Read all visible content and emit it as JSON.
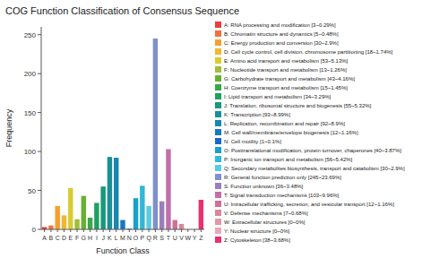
{
  "chart_data": {
    "type": "bar",
    "title": "COG Function Classification of Consensus Sequence",
    "xlabel": "Function Class",
    "ylabel": "Frequency",
    "categories": [
      "A",
      "B",
      "C",
      "D",
      "E",
      "F",
      "G",
      "H",
      "I",
      "J",
      "K",
      "L",
      "M",
      "N",
      "O",
      "P",
      "Q",
      "R",
      "S",
      "T",
      "U",
      "V",
      "W",
      "Y",
      "Z"
    ],
    "values": [
      3,
      5,
      30,
      18,
      53,
      13,
      43,
      15,
      34,
      55,
      93,
      92,
      12,
      1,
      40,
      56,
      30,
      245,
      36,
      103,
      12,
      7,
      0,
      0,
      38
    ],
    "colors": [
      "#e84040",
      "#f07040",
      "#f4a030",
      "#f0b830",
      "#d8cc30",
      "#a0be38",
      "#68b034",
      "#38a84a",
      "#20a060",
      "#18987c",
      "#189098",
      "#1888b0",
      "#1878c0",
      "#1868cc",
      "#18a0cc",
      "#30b8d8",
      "#58cce0",
      "#8090c8",
      "#9880b8",
      "#c070a8",
      "#d07098",
      "#d88898",
      "#e098a8",
      "#e8a8b8",
      "#e83070"
    ],
    "legend_labels": [
      "A: RNA processing and modification [3~0.29%]",
      "B: Chromatin structure and dynamics [5~0.48%]",
      "C: Energy production and conversion [30~2.9%]",
      "D: Cell cycle control, cell division, chromosome partitioning [18~1.74%]",
      "E: Amino acid transport and metabolism [53~5.13%]",
      "F: Nucleotide transport and metabolism [13~1.26%]",
      "G: Carbohydrate transport and metabolism [43~4.16%]",
      "H: Coenzyme transport and metabolism [15~1.45%]",
      "I: Lipid transport and metabolism [34~3.29%]",
      "J: Translation, ribosomal structure and biogenesis [55~5.32%]",
      "K: Transcription [93~8.99%]",
      "L: Replication, recombination and repair [92~8.9%]",
      "M: Cell wall/membrane/envelope biogenesis [12~1.16%]",
      "N: Cell motility [1~0.1%]",
      "O: Posttranslational modification, protein turnover, chaperones [40~3.87%]",
      "P: Inorganic ion transport and metabolism [56~5.42%]",
      "Q: Secondary metabolites biosynthesis, transport and catabolism [30~2.9%]",
      "R: General function prediction only [245~23.69%]",
      "S: Function unknown [36~3.48%]",
      "T: Signal transduction mechanisms [103~9.96%]",
      "U: Intracellular trafficking, secretion, and vesicular transport [12~1.16%]",
      "V: Defense mechanisms [7~0.68%]",
      "W: Extracellular structures [0~0%]",
      "Y: Nuclear structure [0~0%]",
      "Z: Cytoskeleton [38~3.68%]"
    ],
    "ylim": [
      0,
      260
    ],
    "yticks": [
      0,
      50,
      100,
      150,
      200,
      250
    ],
    "grid": false,
    "legend": "right"
  }
}
